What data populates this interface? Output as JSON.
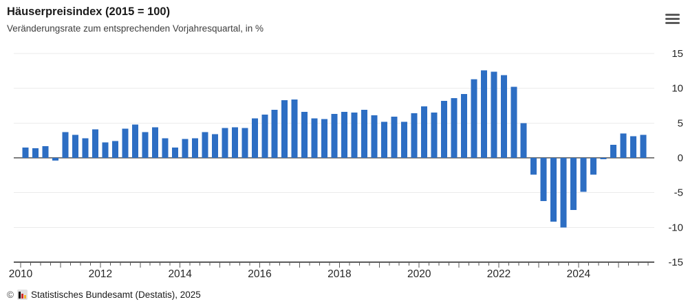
{
  "header": {
    "title": "Häuserpreisindex (2015 = 100)",
    "subtitle": "Veränderungsrate zum entsprechenden Vorjahresquartal, in %"
  },
  "menu": {
    "icon": "hamburger-icon"
  },
  "footer": {
    "copyright": "©",
    "logo": "destatis-mini-barchart-logo",
    "logo_colors": [
      "#000000",
      "#d02c2c",
      "#f5b32e"
    ],
    "source": "Statistisches Bundesamt (Destatis), 2025"
  },
  "chart_data": {
    "type": "bar",
    "title": "Häuserpreisindex (2015 = 100)",
    "subtitle": "Veränderungsrate zum entsprechenden Vorjahresquartal, in %",
    "unit": "%",
    "bar_color": "#2d6ec3",
    "grid": true,
    "legend": false,
    "ylim": [
      -15,
      15
    ],
    "yticks": [
      15,
      10,
      5,
      0,
      -5,
      -10,
      -15
    ],
    "xticklabels": [
      "2010",
      "2012",
      "2014",
      "2016",
      "2018",
      "2020",
      "2022",
      "2024"
    ],
    "x": [
      "2010 Q1",
      "2010 Q2",
      "2010 Q3",
      "2010 Q4",
      "2011 Q1",
      "2011 Q2",
      "2011 Q3",
      "2011 Q4",
      "2012 Q1",
      "2012 Q2",
      "2012 Q3",
      "2012 Q4",
      "2013 Q1",
      "2013 Q2",
      "2013 Q3",
      "2013 Q4",
      "2014 Q1",
      "2014 Q2",
      "2014 Q3",
      "2014 Q4",
      "2015 Q1",
      "2015 Q2",
      "2015 Q3",
      "2015 Q4",
      "2016 Q1",
      "2016 Q2",
      "2016 Q3",
      "2016 Q4",
      "2017 Q1",
      "2017 Q2",
      "2017 Q3",
      "2017 Q4",
      "2018 Q1",
      "2018 Q2",
      "2018 Q3",
      "2018 Q4",
      "2019 Q1",
      "2019 Q2",
      "2019 Q3",
      "2019 Q4",
      "2020 Q1",
      "2020 Q2",
      "2020 Q3",
      "2020 Q4",
      "2021 Q1",
      "2021 Q2",
      "2021 Q3",
      "2021 Q4",
      "2022 Q1",
      "2022 Q2",
      "2022 Q3",
      "2022 Q4",
      "2023 Q1",
      "2023 Q2",
      "2023 Q3",
      "2023 Q4",
      "2024 Q1",
      "2024 Q2",
      "2024 Q3",
      "2024 Q4",
      "2025 Q1",
      "2025 Q2",
      "2025 Q3"
    ],
    "values": [
      1.5,
      1.4,
      1.7,
      -0.4,
      3.7,
      3.3,
      2.8,
      4.1,
      2.2,
      2.4,
      4.2,
      4.8,
      3.7,
      4.4,
      2.8,
      1.5,
      2.7,
      2.8,
      3.7,
      3.4,
      4.3,
      4.4,
      4.3,
      5.7,
      6.2,
      6.9,
      8.3,
      8.4,
      6.6,
      5.7,
      5.6,
      6.3,
      6.6,
      6.5,
      6.9,
      6.1,
      5.2,
      5.9,
      5.2,
      6.4,
      7.4,
      6.5,
      8.2,
      8.6,
      9.2,
      11.3,
      12.6,
      12.4,
      11.9,
      10.2,
      5.0,
      -2.4,
      -6.2,
      -9.2,
      -10.0,
      -7.5,
      -4.9,
      -2.4,
      -0.2,
      1.9,
      3.5,
      3.1,
      3.3
    ]
  }
}
